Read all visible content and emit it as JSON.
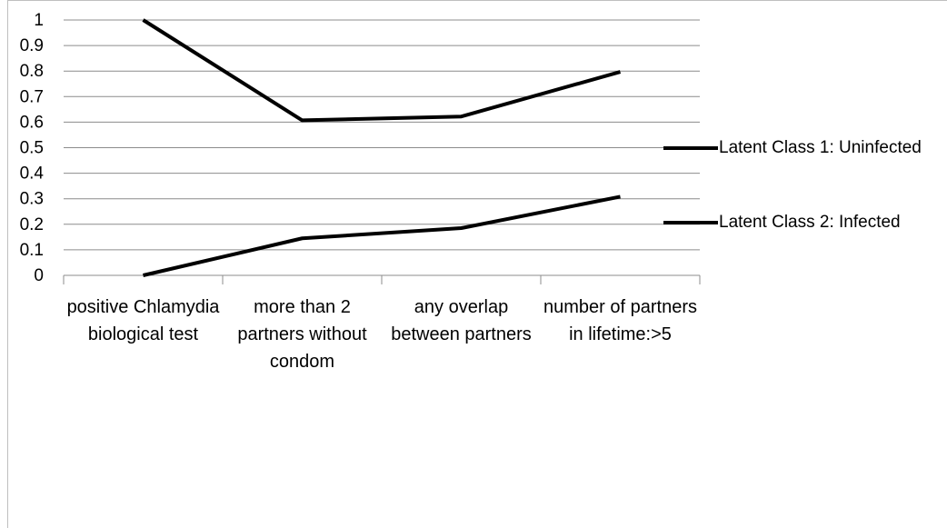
{
  "chart_data": {
    "type": "line",
    "categories": [
      "positive Chlamydia biological test",
      "more than 2 partners without condom",
      "any overlap between partners",
      "number of partners in lifetime:>5"
    ],
    "series": [
      {
        "name": "Latent Class 1: Uninfected",
        "color": "#000000",
        "values": [
          1,
          0.607,
          0.622,
          0.797
        ]
      },
      {
        "name": "Latent Class 2: Infected",
        "color": "#000000",
        "values": [
          0,
          0.145,
          0.185,
          0.308
        ]
      }
    ],
    "ylim": [
      0,
      1
    ],
    "yticks": [
      0,
      0.1,
      0.2,
      0.3,
      0.4,
      0.5,
      0.6,
      0.7,
      0.8,
      0.9,
      1
    ],
    "grid": true
  }
}
